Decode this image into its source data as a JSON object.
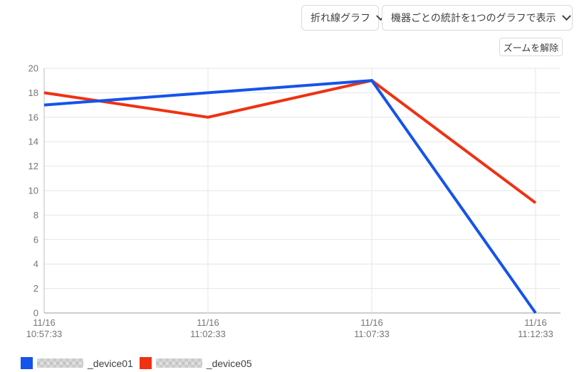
{
  "controls": {
    "chart_type_select": {
      "value": "折れ線グラフ"
    },
    "display_mode_select": {
      "value": "機器ごとの統計を1つのグラフで表示"
    },
    "zoom_reset_button": "ズームを解除"
  },
  "chart_data": {
    "type": "line",
    "categories": [
      {
        "date": "11/16",
        "time": "10:57:33"
      },
      {
        "date": "11/16",
        "time": "11:02:33"
      },
      {
        "date": "11/16",
        "time": "11:07:33"
      },
      {
        "date": "11/16",
        "time": "11:12:33"
      }
    ],
    "series": [
      {
        "label": "_device01",
        "label_prefix_redacted": true,
        "color": "#1553eb",
        "values": [
          17,
          18,
          19,
          0
        ]
      },
      {
        "label": "_device05",
        "label_prefix_redacted": true,
        "color": "#ee3212",
        "values": [
          18,
          16,
          19,
          9
        ]
      }
    ],
    "title": "",
    "xlabel": "",
    "ylabel": "",
    "ylim": [
      0,
      20
    ],
    "yticks": [
      0,
      2,
      4,
      6,
      8,
      10,
      12,
      14,
      16,
      18,
      20
    ],
    "grid": true,
    "legend_position": "bottom"
  },
  "legend": {
    "items": [
      {
        "swatch_color": "#1553eb",
        "redacted_prefix": true,
        "label": "_device01"
      },
      {
        "swatch_color": "#ee3212",
        "redacted_prefix": true,
        "label": "_device05"
      }
    ]
  },
  "colors": {
    "gridline": "#e6e6e6",
    "baseline": "#9e9e9e",
    "y_axis_line": "#babec2",
    "tick_text": "#757575"
  }
}
